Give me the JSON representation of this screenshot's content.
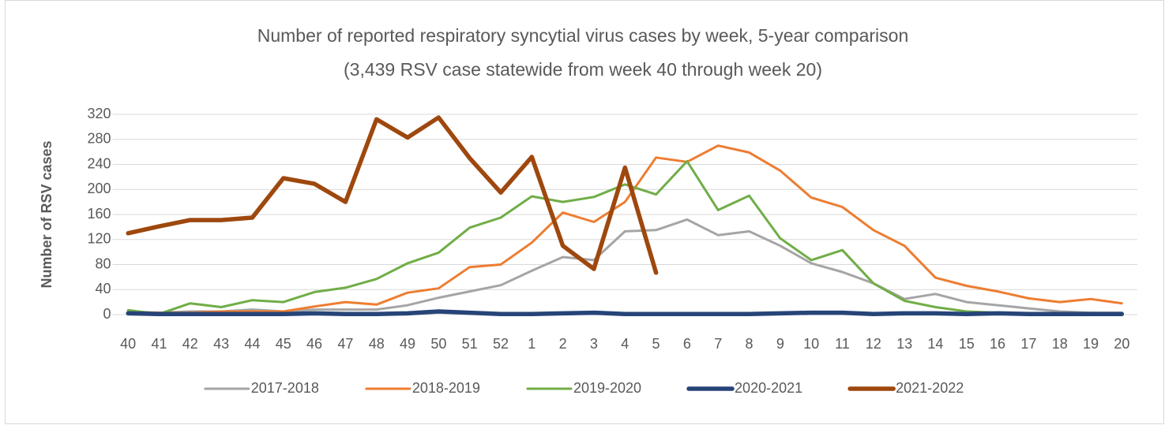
{
  "chart_data": {
    "type": "line",
    "title": "Number of reported respiratory syncytial virus cases by week, 5-year comparison",
    "subtitle": "(3,439 RSV case statewide from week 40 through week 20)",
    "y_label": "Number of RSV cases",
    "categories": [
      "40",
      "41",
      "42",
      "43",
      "44",
      "45",
      "46",
      "47",
      "48",
      "49",
      "50",
      "51",
      "52",
      "1",
      "2",
      "3",
      "4",
      "5",
      "6",
      "7",
      "8",
      "9",
      "10",
      "11",
      "12",
      "13",
      "14",
      "15",
      "16",
      "17",
      "18",
      "19",
      "20"
    ],
    "series": [
      {
        "name": "2017-2018",
        "color": "#a5a5a5",
        "values": [
          5,
          3,
          5,
          5,
          8,
          5,
          8,
          8,
          8,
          15,
          27,
          37,
          47,
          70,
          92,
          87,
          133,
          135,
          152,
          127,
          133,
          110,
          82,
          68,
          50,
          25,
          33,
          20,
          15,
          10,
          5,
          3,
          3
        ]
      },
      {
        "name": "2018-2019",
        "color": "#ed7d31",
        "values": [
          3,
          3,
          3,
          5,
          5,
          5,
          13,
          20,
          16,
          35,
          42,
          76,
          80,
          115,
          163,
          148,
          180,
          251,
          244,
          270,
          259,
          230,
          187,
          172,
          135,
          110,
          59,
          46,
          37,
          26,
          20,
          25,
          18
        ]
      },
      {
        "name": "2019-2020",
        "color": "#70ad47",
        "values": [
          7,
          1,
          18,
          12,
          23,
          20,
          36,
          43,
          57,
          82,
          99,
          139,
          155,
          189,
          180,
          188,
          208,
          192,
          245,
          167,
          190,
          122,
          87,
          103,
          50,
          22,
          12,
          5,
          3,
          2,
          1,
          1,
          1
        ]
      },
      {
        "name": "2020-2021",
        "color": "#264478",
        "values": [
          2,
          1,
          1,
          1,
          1,
          1,
          2,
          1,
          1,
          2,
          5,
          3,
          1,
          1,
          2,
          3,
          1,
          1,
          1,
          1,
          1,
          2,
          3,
          3,
          1,
          2,
          2,
          1,
          2,
          1,
          1,
          1,
          1
        ]
      },
      {
        "name": "2021-2022",
        "color": "#9e480e",
        "values": [
          130,
          141,
          151,
          151,
          155,
          218,
          209,
          180,
          312,
          283,
          315,
          250,
          195,
          252,
          110,
          73,
          235,
          67,
          null,
          null,
          null,
          null,
          null,
          null,
          null,
          null,
          null,
          null,
          null,
          null,
          null,
          null,
          null
        ]
      }
    ],
    "ylim": [
      0,
      320
    ],
    "yticks": [
      0,
      40,
      80,
      120,
      160,
      200,
      240,
      280,
      320
    ],
    "grid": true,
    "legend": "bottom"
  }
}
